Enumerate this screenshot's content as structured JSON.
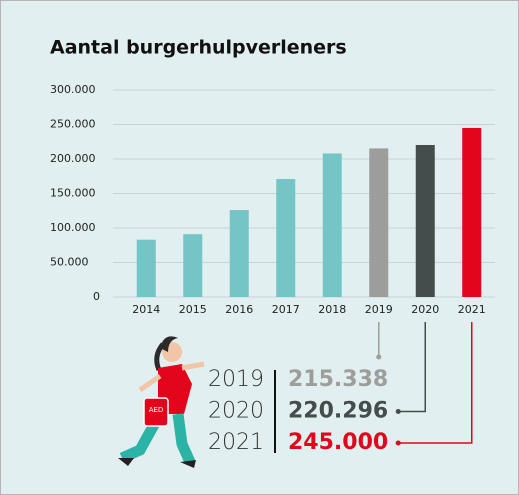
{
  "chart_data": {
    "type": "bar",
    "title": "Aantal burgerhulpverleners",
    "categories": [
      "2014",
      "2015",
      "2016",
      "2017",
      "2018",
      "2019",
      "2020",
      "2021"
    ],
    "values": [
      83000,
      91000,
      126000,
      171000,
      208000,
      215338,
      220296,
      245000
    ],
    "value_labels": [
      null,
      null,
      null,
      null,
      null,
      "215.338",
      "220.296",
      "245.000"
    ],
    "colors": [
      "#74c6c6",
      "#74c6c6",
      "#74c6c6",
      "#74c6c6",
      "#74c6c6",
      "#9d9d9b",
      "#454c4c",
      "#e3051b"
    ],
    "ylim": [
      0,
      300000
    ],
    "yticks": [
      0,
      {
        "value": 50000,
        "label": "50.000"
      },
      {
        "value": 100000,
        "label": "100.000"
      },
      {
        "value": 150000,
        "label": "150.000"
      },
      {
        "value": 200000,
        "label": "200.000"
      },
      {
        "value": 250000,
        "label": "250.000"
      },
      {
        "value": 300000,
        "label": "300.000"
      }
    ],
    "grid": true
  }
}
